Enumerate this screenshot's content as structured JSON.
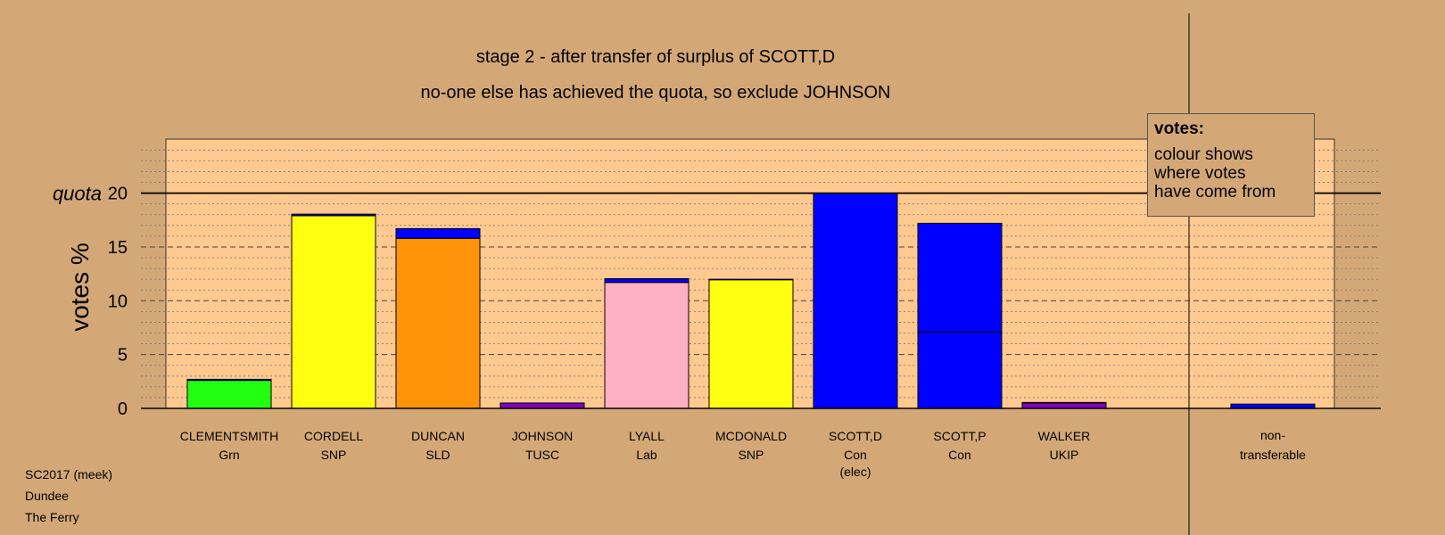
{
  "header": {
    "line1": "stage 2 - after transfer of surplus of SCOTT,D",
    "line2": "no-one else has achieved the quota, so exclude JOHNSON"
  },
  "legend": {
    "title": "votes:",
    "lines": [
      "colour shows",
      "where votes",
      "have come from"
    ]
  },
  "footer": {
    "election": "SC2017 (meek)",
    "council": "Dundee",
    "ward": "The Ferry"
  },
  "colors": {
    "background": "#d4a876",
    "plot_area": "#ffc98f",
    "con_blue": "#0000ff",
    "grn": "#22ff11",
    "snp": "#ffff11",
    "sld": "#ff9309",
    "tusc": "#8000c0",
    "lab": "#ffafc4",
    "ukip": "#8000c0"
  },
  "chart_data": {
    "type": "bar",
    "stacked": true,
    "ylabel": "votes %",
    "ylim": [
      0,
      25
    ],
    "yticks": [
      0,
      5,
      10,
      15,
      20
    ],
    "quota": {
      "label": "quota",
      "value": 20
    },
    "grid": true,
    "candidates": [
      {
        "name": "CLEMENTSMITH",
        "party": "Grn",
        "note": "",
        "segments": [
          {
            "from": "Grn",
            "value": 2.6,
            "color": "#22ff11"
          },
          {
            "from": "Con",
            "value": 0.1,
            "color": "#0000ff"
          }
        ]
      },
      {
        "name": "CORDELL",
        "party": "SNP",
        "note": "",
        "segments": [
          {
            "from": "SNP",
            "value": 17.9,
            "color": "#ffff11"
          },
          {
            "from": "Con",
            "value": 0.15,
            "color": "#0000ff"
          }
        ]
      },
      {
        "name": "DUNCAN",
        "party": "SLD",
        "note": "",
        "segments": [
          {
            "from": "SLD",
            "value": 15.8,
            "color": "#ff9309"
          },
          {
            "from": "Con",
            "value": 0.9,
            "color": "#0000ff"
          }
        ]
      },
      {
        "name": "JOHNSON",
        "party": "TUSC",
        "note": "",
        "segments": [
          {
            "from": "TUSC",
            "value": 0.5,
            "color": "#8000c0"
          }
        ]
      },
      {
        "name": "LYALL",
        "party": "Lab",
        "note": "",
        "segments": [
          {
            "from": "Lab",
            "value": 11.7,
            "color": "#ffafc4"
          },
          {
            "from": "Con",
            "value": 0.35,
            "color": "#0000ff"
          }
        ]
      },
      {
        "name": "MCDONALD",
        "party": "SNP",
        "note": "",
        "segments": [
          {
            "from": "SNP",
            "value": 11.95,
            "color": "#ffff11"
          },
          {
            "from": "Con",
            "value": 0.05,
            "color": "#0000ff"
          }
        ]
      },
      {
        "name": "SCOTT,D",
        "party": "Con",
        "note": "(elec)",
        "segments": [
          {
            "from": "Con",
            "value": 20.0,
            "color": "#0000ff"
          }
        ]
      },
      {
        "name": "SCOTT,P",
        "party": "Con",
        "note": "",
        "segments": [
          {
            "from": "Con",
            "value": 7.1,
            "color": "#0000ff"
          },
          {
            "from": "Con",
            "value": 10.1,
            "color": "#0000ff"
          }
        ]
      },
      {
        "name": "WALKER",
        "party": "UKIP",
        "note": "",
        "segments": [
          {
            "from": "UKIP",
            "value": 0.5,
            "color": "#8000c0"
          },
          {
            "from": "Con",
            "value": 0.05,
            "color": "#0000ff"
          }
        ]
      }
    ],
    "nontransferable": {
      "label1": "non-",
      "label2": "transferable",
      "value": 0.4,
      "color": "#0000ff"
    }
  }
}
